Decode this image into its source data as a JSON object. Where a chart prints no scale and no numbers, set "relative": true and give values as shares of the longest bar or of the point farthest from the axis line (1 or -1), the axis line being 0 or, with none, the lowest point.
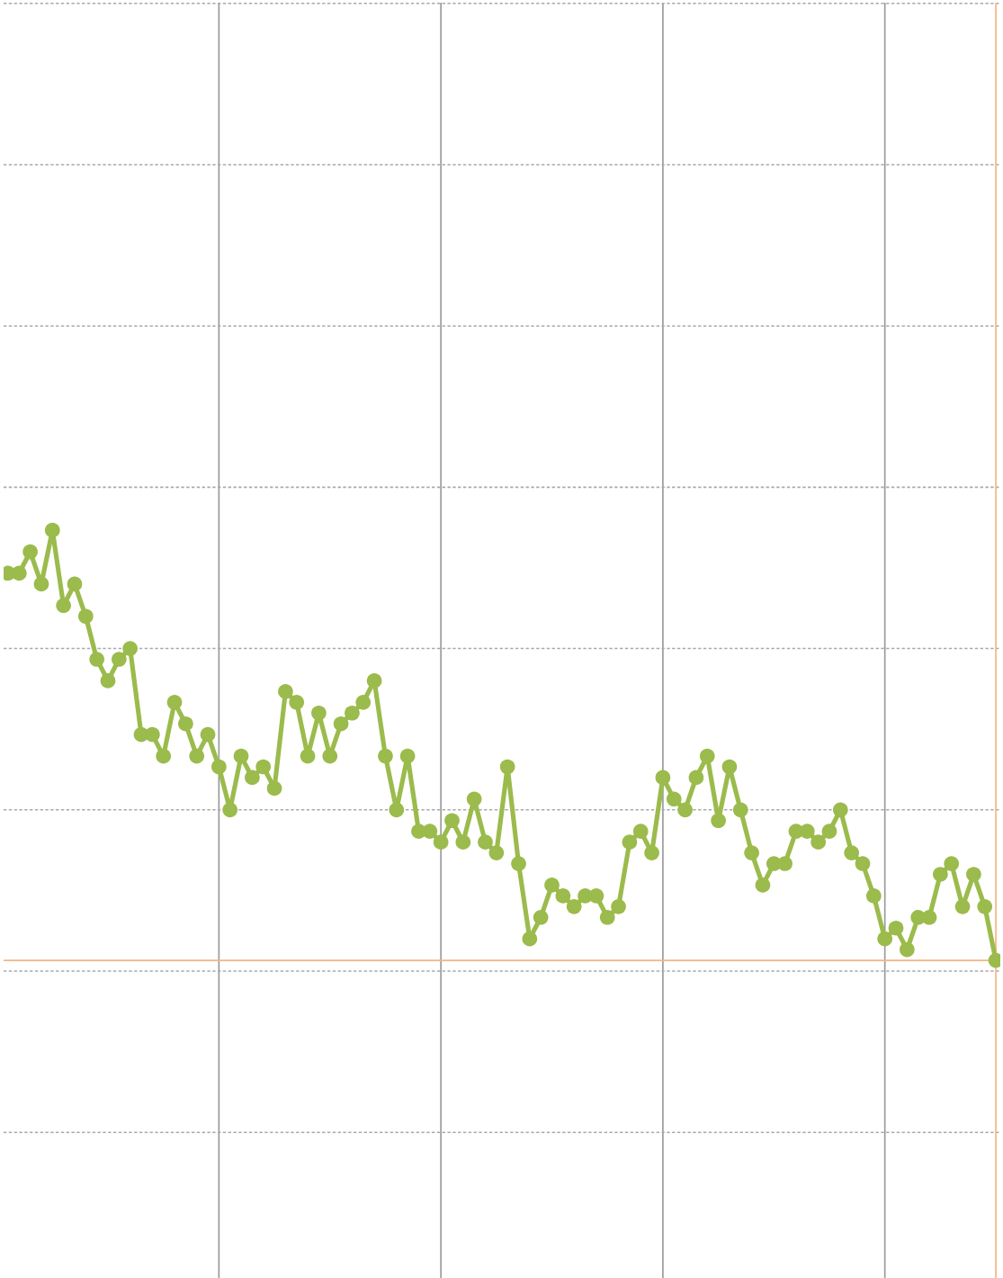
{
  "chart_data": {
    "type": "line",
    "relative": true,
    "categories": [
      null,
      null,
      null,
      null,
      null,
      null,
      null,
      null,
      null,
      null,
      null,
      null,
      null,
      null,
      null,
      null,
      null,
      null,
      null,
      null,
      null,
      null,
      null,
      null,
      null,
      null,
      null,
      null,
      null,
      null,
      null,
      null,
      null,
      null,
      null,
      null,
      null,
      null,
      null,
      null,
      null,
      null,
      null,
      null,
      null,
      null,
      null,
      null,
      null,
      null,
      null,
      null,
      null,
      null,
      null,
      null,
      null,
      null,
      null,
      null,
      null,
      null,
      null,
      null,
      null,
      null,
      null,
      null,
      null,
      null,
      null,
      null,
      null,
      null,
      null,
      null,
      null,
      null,
      null,
      null,
      null,
      null,
      null,
      null,
      null,
      null,
      null,
      null,
      null,
      null
    ],
    "series": [
      {
        "color": "#9bbb4c",
        "values": [
          0.9,
          0.9,
          0.95,
          0.875,
          1,
          0.825,
          0.875,
          0.8,
          0.7,
          0.65,
          0.7,
          0.725,
          0.525,
          0.525,
          0.475,
          0.6,
          0.55,
          0.475,
          0.525,
          0.45,
          0.35,
          0.475,
          0.425,
          0.45,
          0.4,
          0.625,
          0.6,
          0.475,
          0.575,
          0.475,
          0.55,
          0.575,
          0.6,
          0.65,
          0.475,
          0.35,
          0.475,
          0.3,
          0.3,
          0.275,
          0.325,
          0.275,
          0.375,
          0.275,
          0.25,
          0.45,
          0.225,
          0.05,
          0.1,
          0.175,
          0.15,
          0.125,
          0.15,
          0.15,
          0.1,
          0.125,
          0.275,
          0.3,
          0.25,
          0.425,
          0.375,
          0.35,
          0.425,
          0.475,
          0.325,
          0.45,
          0.35,
          0.25,
          0.175,
          0.225,
          0.225,
          0.3,
          0.3,
          0.275,
          0.3,
          0.35,
          0.25,
          0.225,
          0.15,
          0.05,
          0.075,
          0.025,
          0.1,
          0.1,
          0.2,
          0.225,
          0.125,
          0.2,
          0.125,
          0
        ]
      }
    ],
    "marker": "circle",
    "line_style": "solid",
    "grid": "x",
    "ref_lines": [
      {
        "axis": "y",
        "value": 2.225,
        "color": "#a9a9a9",
        "line_style": "dotted"
      },
      {
        "axis": "y",
        "value": 1.85,
        "color": "#a9a9a9",
        "line_style": "dotted"
      },
      {
        "axis": "y",
        "value": 1.475,
        "color": "#a9a9a9",
        "line_style": "dotted"
      },
      {
        "axis": "y",
        "value": 1.1,
        "color": "#a9a9a9",
        "line_style": "dotted"
      },
      {
        "axis": "y",
        "value": 0.725,
        "color": "#a9a9a9",
        "line_style": "dotted"
      },
      {
        "axis": "y",
        "value": 0.35,
        "color": "#a9a9a9",
        "line_style": "dotted"
      },
      {
        "axis": "y",
        "value": -0.025,
        "color": "#a9a9a9",
        "line_style": "dotted"
      },
      {
        "axis": "y",
        "value": -0.4,
        "color": "#a9a9a9",
        "line_style": "dotted"
      },
      {
        "axis": "y",
        "value": 0,
        "color": "#f6b383"
      }
    ]
  }
}
